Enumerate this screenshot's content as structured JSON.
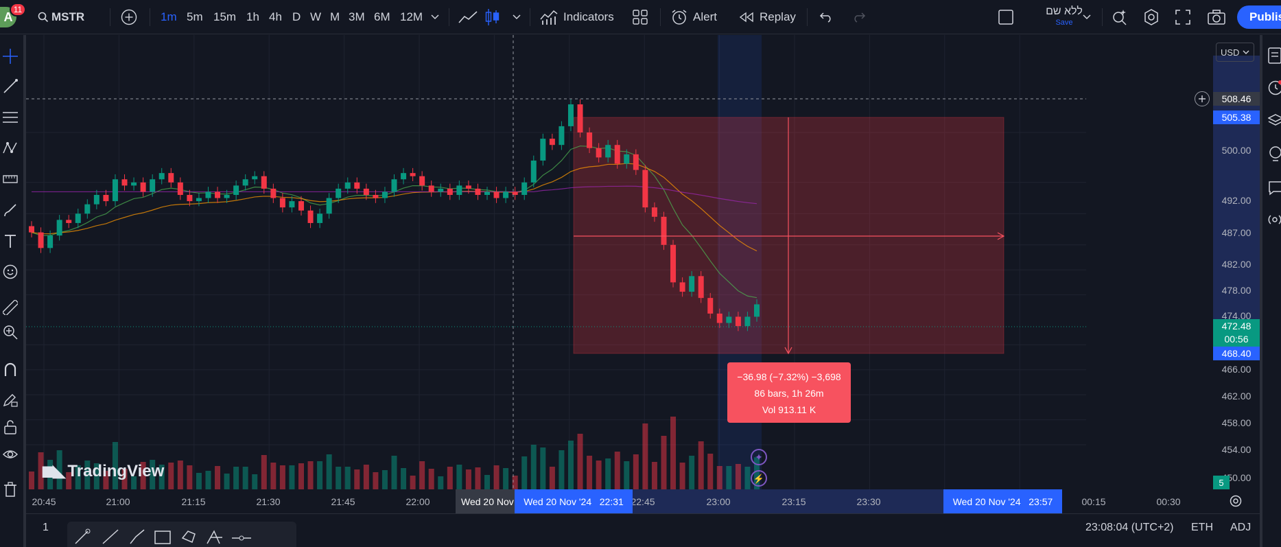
{
  "account": {
    "avatar_letter": "A",
    "notifications": "11"
  },
  "header": {
    "symbol": "MSTR",
    "intervals": [
      {
        "label": "1m",
        "active": true
      },
      {
        "label": "5m",
        "active": false
      },
      {
        "label": "15m",
        "active": false
      },
      {
        "label": "1h",
        "active": false
      },
      {
        "label": "4h",
        "active": false
      },
      {
        "label": "D",
        "active": false
      },
      {
        "label": "W",
        "active": false
      },
      {
        "label": "M",
        "active": false
      },
      {
        "label": "3M",
        "active": false
      },
      {
        "label": "6M",
        "active": false
      },
      {
        "label": "12M",
        "active": false
      }
    ],
    "indicators_label": "Indicators",
    "alert_label": "Alert",
    "replay_label": "Replay",
    "layout_name": "ללא שם",
    "save_label": "Save",
    "publish_label": "Publish"
  },
  "price_scale": {
    "currency": "USD",
    "labels": [
      "500.00",
      "492.00",
      "487.00",
      "482.00",
      "478.00",
      "474.00",
      "466.00",
      "462.00",
      "458.00",
      "454.00",
      "450.00"
    ],
    "crosshair_price": "508.46",
    "high_price": "505.38",
    "last_price": "472.48",
    "countdown": "00:56",
    "low_price": "468.40",
    "volume_badge": "5"
  },
  "time_axis": {
    "labels": [
      "20:45",
      "21:00",
      "21:15",
      "21:30",
      "21:45",
      "22:00",
      "22:45",
      "23:00",
      "23:15",
      "23:30",
      "00:15",
      "00:30"
    ],
    "crosshair_label": "Wed 20 Nov",
    "range_start": "Wed 20 Nov '24   22:31",
    "range_end": "Wed 20 Nov '24   23:57"
  },
  "measure": {
    "change": "−36.98 (−7.32%) −3,698",
    "bars": "86 bars, 1h 26m",
    "volume": "Vol 913.11 K"
  },
  "branding": {
    "logo_text": "TradingView"
  },
  "footer": {
    "left_value": "1",
    "clock": "23:08:04 (UTC+2)",
    "session": "ETH",
    "adjust": "ADJ"
  },
  "colors": {
    "background": "#131722",
    "up": "#089981",
    "down": "#f23645",
    "accent": "#2962ff",
    "measure_fill": "#f7525f"
  },
  "chart_data": {
    "type": "candlestick",
    "symbol": "MSTR",
    "interval": "1m",
    "y_range": [
      448,
      512
    ],
    "candles": [
      {
        "t": "20:45",
        "o": 485.0,
        "c": 484.0
      },
      {
        "t": "20:47",
        "o": 484.0,
        "c": 481.5
      },
      {
        "t": "20:49",
        "o": 481.5,
        "c": 483.5
      },
      {
        "t": "20:51",
        "o": 483.5,
        "c": 486.0
      },
      {
        "t": "20:53",
        "o": 486.0,
        "c": 485.5
      },
      {
        "t": "20:55",
        "o": 485.5,
        "c": 487.0
      },
      {
        "t": "20:57",
        "o": 487.0,
        "c": 488.5
      },
      {
        "t": "20:59",
        "o": 488.5,
        "c": 490.0
      },
      {
        "t": "21:01",
        "o": 490.0,
        "c": 489.0
      },
      {
        "t": "21:03",
        "o": 489.0,
        "c": 492.5
      },
      {
        "t": "21:05",
        "o": 492.5,
        "c": 491.5
      },
      {
        "t": "21:07",
        "o": 491.5,
        "c": 492.0
      },
      {
        "t": "21:09",
        "o": 492.0,
        "c": 490.5
      },
      {
        "t": "21:11",
        "o": 490.5,
        "c": 492.5
      },
      {
        "t": "21:13",
        "o": 492.5,
        "c": 493.5
      },
      {
        "t": "21:15",
        "o": 493.5,
        "c": 492.0
      },
      {
        "t": "21:17",
        "o": 492.0,
        "c": 490.0
      },
      {
        "t": "21:19",
        "o": 490.0,
        "c": 489.0
      },
      {
        "t": "21:21",
        "o": 489.0,
        "c": 489.5
      },
      {
        "t": "21:23",
        "o": 489.5,
        "c": 490.5
      },
      {
        "t": "21:25",
        "o": 490.5,
        "c": 489.5
      },
      {
        "t": "21:27",
        "o": 489.5,
        "c": 490.0
      },
      {
        "t": "21:29",
        "o": 490.0,
        "c": 491.5
      },
      {
        "t": "21:31",
        "o": 491.5,
        "c": 492.5
      },
      {
        "t": "21:33",
        "o": 492.5,
        "c": 493.0
      },
      {
        "t": "21:35",
        "o": 493.0,
        "c": 491.0
      },
      {
        "t": "21:37",
        "o": 491.0,
        "c": 489.5
      },
      {
        "t": "21:39",
        "o": 489.5,
        "c": 488.0
      },
      {
        "t": "21:41",
        "o": 488.0,
        "c": 489.0
      },
      {
        "t": "21:43",
        "o": 489.0,
        "c": 487.5
      },
      {
        "t": "21:45",
        "o": 487.5,
        "c": 485.5
      },
      {
        "t": "21:47",
        "o": 485.5,
        "c": 487.0
      },
      {
        "t": "21:49",
        "o": 487.0,
        "c": 489.5
      },
      {
        "t": "21:51",
        "o": 489.5,
        "c": 491.0
      },
      {
        "t": "21:53",
        "o": 491.0,
        "c": 492.0
      },
      {
        "t": "21:55",
        "o": 492.0,
        "c": 491.0
      },
      {
        "t": "21:57",
        "o": 491.0,
        "c": 490.0
      },
      {
        "t": "21:59",
        "o": 490.0,
        "c": 489.5
      },
      {
        "t": "22:01",
        "o": 489.5,
        "c": 490.5
      },
      {
        "t": "22:03",
        "o": 490.5,
        "c": 492.5
      },
      {
        "t": "22:05",
        "o": 492.5,
        "c": 493.5
      },
      {
        "t": "22:07",
        "o": 493.5,
        "c": 493.0
      },
      {
        "t": "22:09",
        "o": 493.0,
        "c": 491.5
      },
      {
        "t": "22:11",
        "o": 491.5,
        "c": 490.5
      },
      {
        "t": "22:13",
        "o": 490.5,
        "c": 491.0
      },
      {
        "t": "22:15",
        "o": 491.0,
        "c": 490.0
      },
      {
        "t": "22:17",
        "o": 490.0,
        "c": 491.5
      },
      {
        "t": "22:19",
        "o": 491.5,
        "c": 491.0
      },
      {
        "t": "22:21",
        "o": 491.0,
        "c": 490.0
      },
      {
        "t": "22:23",
        "o": 490.0,
        "c": 490.5
      },
      {
        "t": "22:25",
        "o": 490.5,
        "c": 489.5
      },
      {
        "t": "22:27",
        "o": 489.5,
        "c": 490.5
      },
      {
        "t": "22:29",
        "o": 490.5,
        "c": 490.0
      },
      {
        "t": "22:31",
        "o": 490.0,
        "c": 492.0
      },
      {
        "t": "22:33",
        "o": 492.0,
        "c": 495.5
      },
      {
        "t": "22:35",
        "o": 495.5,
        "c": 499.0
      },
      {
        "t": "22:37",
        "o": 499.0,
        "c": 498.0
      },
      {
        "t": "22:39",
        "o": 498.0,
        "c": 501.0
      },
      {
        "t": "22:41",
        "o": 501.0,
        "c": 504.5
      },
      {
        "t": "22:43",
        "o": 504.5,
        "c": 500.0
      },
      {
        "t": "22:45",
        "o": 500.0,
        "c": 497.5
      },
      {
        "t": "22:47",
        "o": 497.5,
        "c": 496.0
      },
      {
        "t": "22:49",
        "o": 496.0,
        "c": 498.0
      },
      {
        "t": "22:51",
        "o": 498.0,
        "c": 495.0
      },
      {
        "t": "22:53",
        "o": 495.0,
        "c": 496.5
      },
      {
        "t": "22:55",
        "o": 496.5,
        "c": 494.0
      },
      {
        "t": "22:57",
        "o": 494.0,
        "c": 488.0
      },
      {
        "t": "22:59",
        "o": 488.0,
        "c": 486.5
      },
      {
        "t": "23:01",
        "o": 486.5,
        "c": 482.0
      },
      {
        "t": "23:03",
        "o": 482.0,
        "c": 476.0
      },
      {
        "t": "23:05",
        "o": 476.0,
        "c": 474.5
      },
      {
        "t": "23:07",
        "o": 474.5,
        "c": 477.0
      },
      {
        "t": "23:09",
        "o": 477.0,
        "c": 473.5
      },
      {
        "t": "23:11",
        "o": 473.5,
        "c": 471.0
      },
      {
        "t": "23:13",
        "o": 471.0,
        "c": 469.5
      },
      {
        "t": "23:15",
        "o": 469.5,
        "c": 470.5
      },
      {
        "t": "23:17",
        "o": 470.5,
        "c": 469.0
      },
      {
        "t": "23:19",
        "o": 469.0,
        "c": 470.5
      },
      {
        "t": "23:21",
        "o": 470.5,
        "c": 472.48
      }
    ]
  }
}
